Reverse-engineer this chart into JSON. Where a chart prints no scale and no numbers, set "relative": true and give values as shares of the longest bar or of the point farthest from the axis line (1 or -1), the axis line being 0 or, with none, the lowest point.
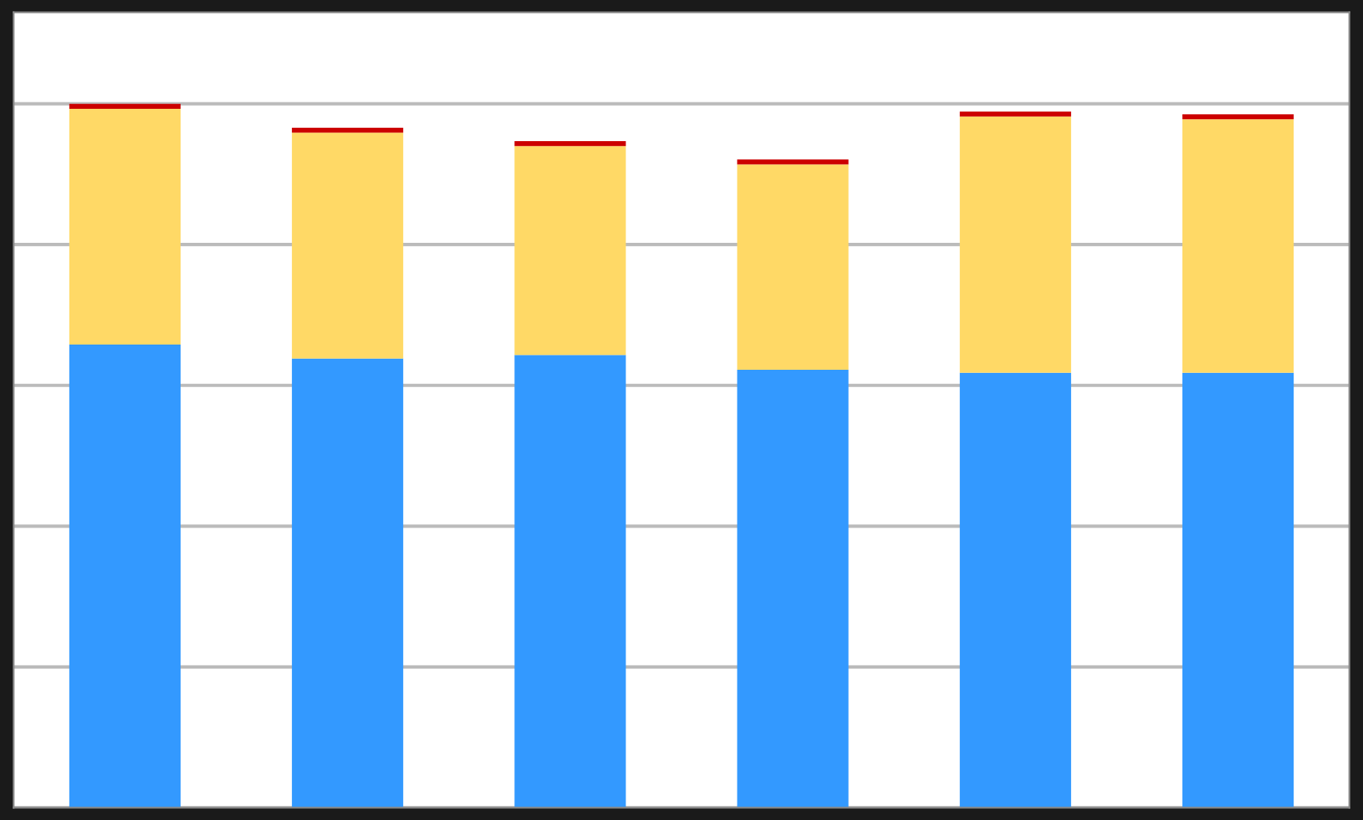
{
  "chart_data": {
    "type": "bar",
    "stacked": true,
    "relative": true,
    "grid": "y",
    "legend": false,
    "categories": [
      null,
      null,
      null,
      null,
      null,
      null
    ],
    "series": [
      {
        "color": "#3399ff",
        "values": [
          0.658,
          0.638,
          0.643,
          0.622,
          0.618,
          0.618
        ]
      },
      {
        "color": "#ffd966",
        "values": [
          0.335,
          0.321,
          0.297,
          0.292,
          0.364,
          0.36
        ]
      },
      {
        "color": "#cc0000",
        "values": [
          0.007,
          0.007,
          0.007,
          0.007,
          0.007,
          0.007
        ]
      }
    ]
  }
}
